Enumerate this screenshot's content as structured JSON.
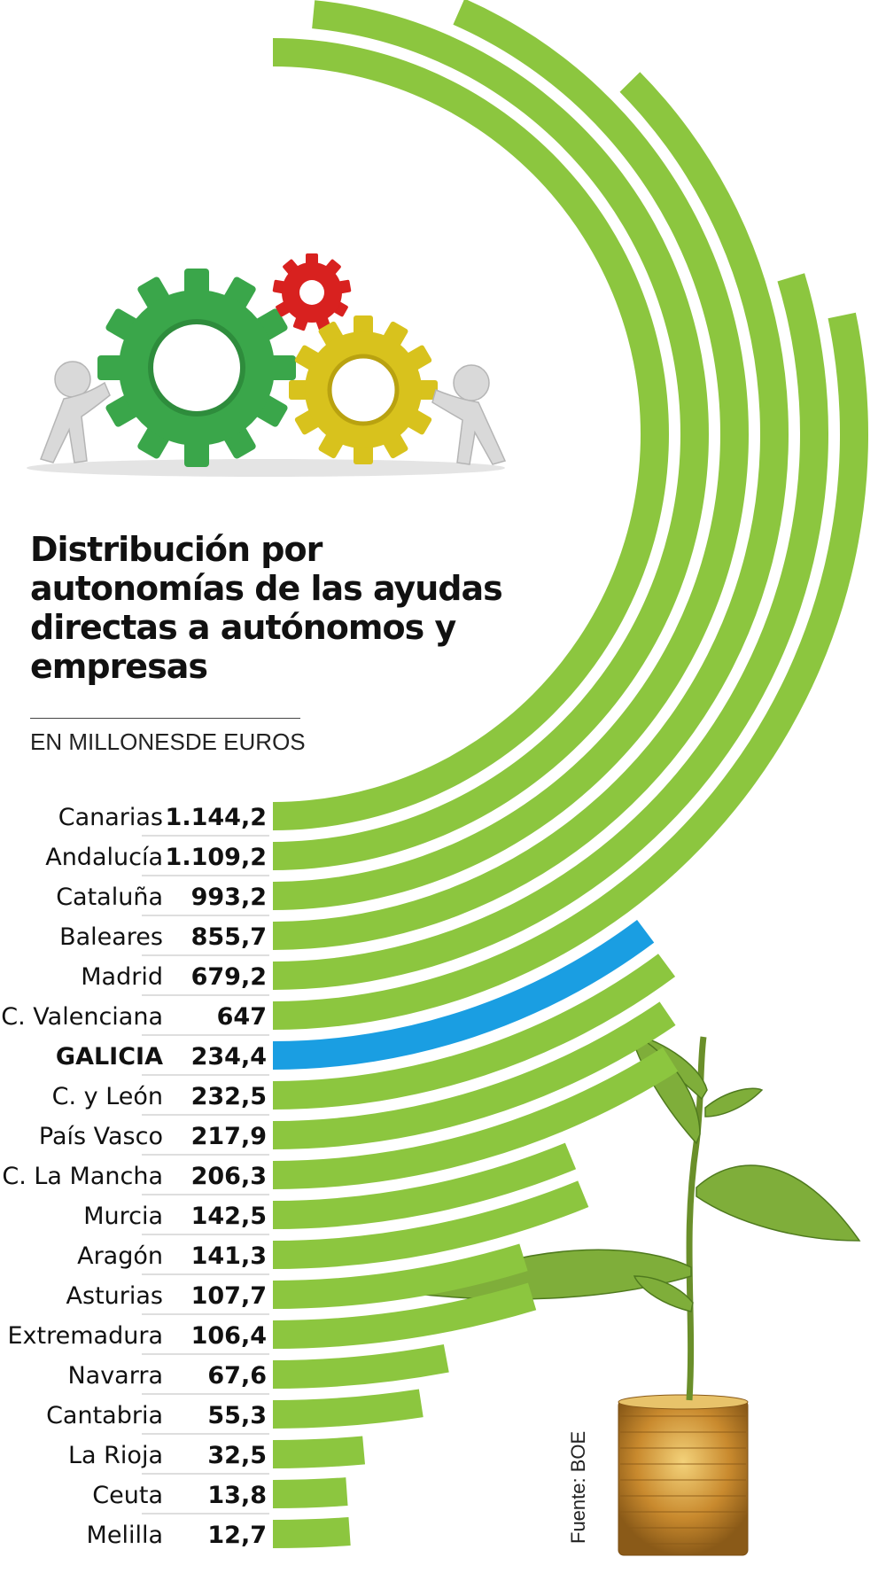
{
  "chart_data": {
    "type": "bar",
    "title": "Distribución por autonomías de las ayudas directas a autónomos y empresas",
    "subtitle": "EN MILLONESDE EUROS",
    "source": "Fuente: BOE",
    "highlight": "GALICIA",
    "categories": [
      "Canarias",
      "Andalucía",
      "Cataluña",
      "Baleares",
      "Madrid",
      "C. Valenciana",
      "GALICIA",
      "C. y León",
      "País Vasco",
      "C. La Mancha",
      "Murcia",
      "Aragón",
      "Asturias",
      "Extremadura",
      "Navarra",
      "Cantabria",
      "La Rioja",
      "Ceuta",
      "Melilla"
    ],
    "value_labels": [
      "1.144,2",
      "1.109,2",
      "993,2",
      "855,7",
      "679,2",
      "647",
      "234,4",
      "232,5",
      "217,9",
      "206,3",
      "142,5",
      "141,3",
      "107,7",
      "106,4",
      "67,6",
      "55,3",
      "32,5",
      "13,8",
      "12,7"
    ],
    "values": [
      1144.2,
      1109.2,
      993.2,
      855.7,
      679.2,
      647,
      234.4,
      232.5,
      217.9,
      206.3,
      142.5,
      141.3,
      107.7,
      106.4,
      67.6,
      55.3,
      32.5,
      13.8,
      12.7
    ],
    "colors": {
      "bar": "#8cc63f",
      "highlight": "#1a9ee2",
      "text": "#111111"
    }
  },
  "illustration": {
    "gears_icon": "gears-with-figures-icon",
    "plant_icon": "plant-on-coins-icon"
  }
}
